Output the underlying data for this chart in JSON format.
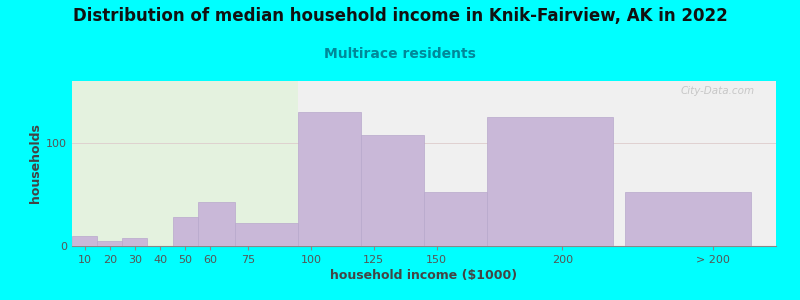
{
  "title": "Distribution of median household income in Knik-Fairview, AK in 2022",
  "subtitle": "Multirace residents",
  "xlabel": "household income ($1000)",
  "ylabel": "households",
  "background_outer": "#00FFFF",
  "background_inner_left": "#e4f2df",
  "background_inner_right": "#f0f0f0",
  "bar_color": "#c9b8d8",
  "bar_edge_color": "#b8a8cc",
  "watermark": "City-Data.com",
  "values": [
    10,
    5,
    8,
    0,
    28,
    43,
    22,
    130,
    108,
    52,
    125,
    52
  ],
  "bar_widths": [
    10,
    10,
    10,
    10,
    10,
    15,
    25,
    25,
    25,
    25,
    50,
    50
  ],
  "bar_lefts": [
    5,
    15,
    25,
    35,
    45,
    55,
    70,
    95,
    120,
    145,
    170,
    225
  ],
  "xtick_positions": [
    10,
    20,
    30,
    40,
    50,
    60,
    75,
    100,
    125,
    150,
    200,
    260
  ],
  "xtick_labels": [
    "10",
    "20",
    "30",
    "40",
    "50",
    "60",
    "75",
    "100",
    "125",
    "150",
    "200",
    "> 200"
  ],
  "ytick_positions": [
    0,
    100
  ],
  "ytick_labels": [
    "0",
    "100"
  ],
  "ylim": [
    0,
    160
  ],
  "xlim": [
    5,
    285
  ],
  "green_split_x": 95,
  "title_fontsize": 12,
  "subtitle_fontsize": 10,
  "axis_label_fontsize": 9,
  "tick_fontsize": 8
}
